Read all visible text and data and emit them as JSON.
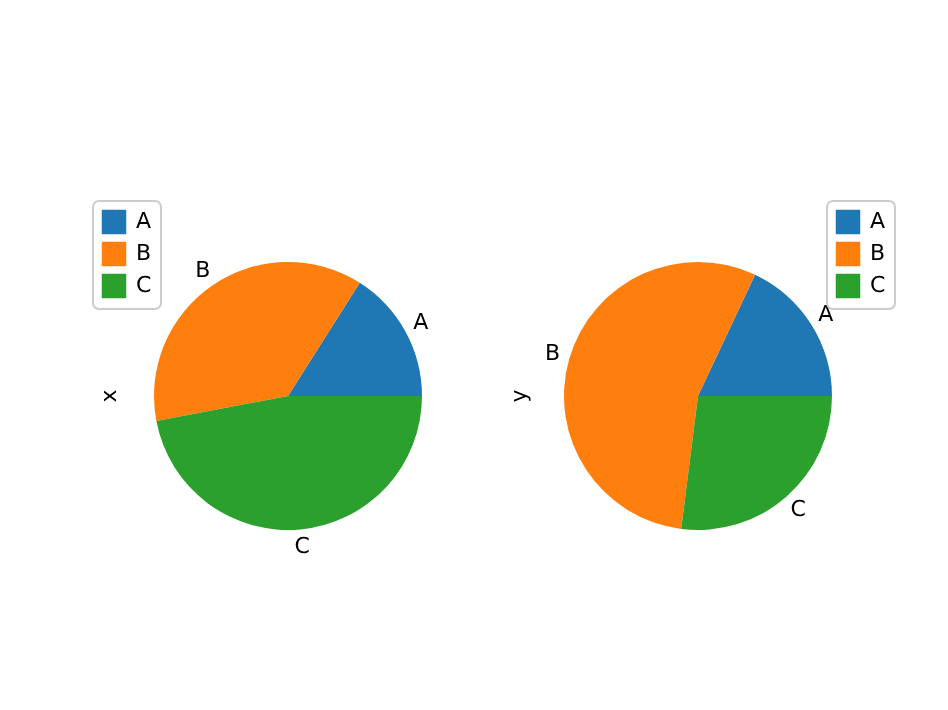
{
  "chart_data": [
    {
      "type": "pie",
      "ylabel": "x",
      "categories": [
        "A",
        "B",
        "C"
      ],
      "values": [
        16,
        37,
        47
      ],
      "colors": [
        "#1f77b4",
        "#ff7f0e",
        "#2ca02c"
      ],
      "legend": "top left"
    },
    {
      "type": "pie",
      "ylabel": "y",
      "categories": [
        "A",
        "B",
        "C"
      ],
      "values": [
        18,
        55,
        27
      ],
      "colors": [
        "#1f77b4",
        "#ff7f0e",
        "#2ca02c"
      ],
      "legend": "top right"
    }
  ]
}
